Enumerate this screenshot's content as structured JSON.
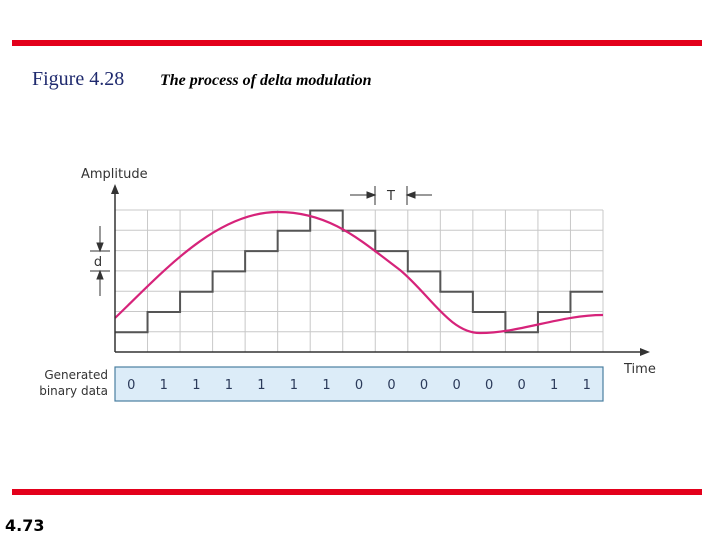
{
  "header": {
    "figure": "Figure 4.28",
    "caption": "The process of delta modulation"
  },
  "diagram": {
    "y_axis_label": "Amplitude",
    "x_axis_label": "Time",
    "period_label": "T",
    "step_label": "d",
    "data_label": [
      "Generated",
      "binary data"
    ],
    "bits": [
      0,
      1,
      1,
      1,
      1,
      1,
      1,
      0,
      0,
      0,
      0,
      0,
      0,
      1,
      1
    ]
  },
  "footer": {
    "page": "4.73"
  }
}
